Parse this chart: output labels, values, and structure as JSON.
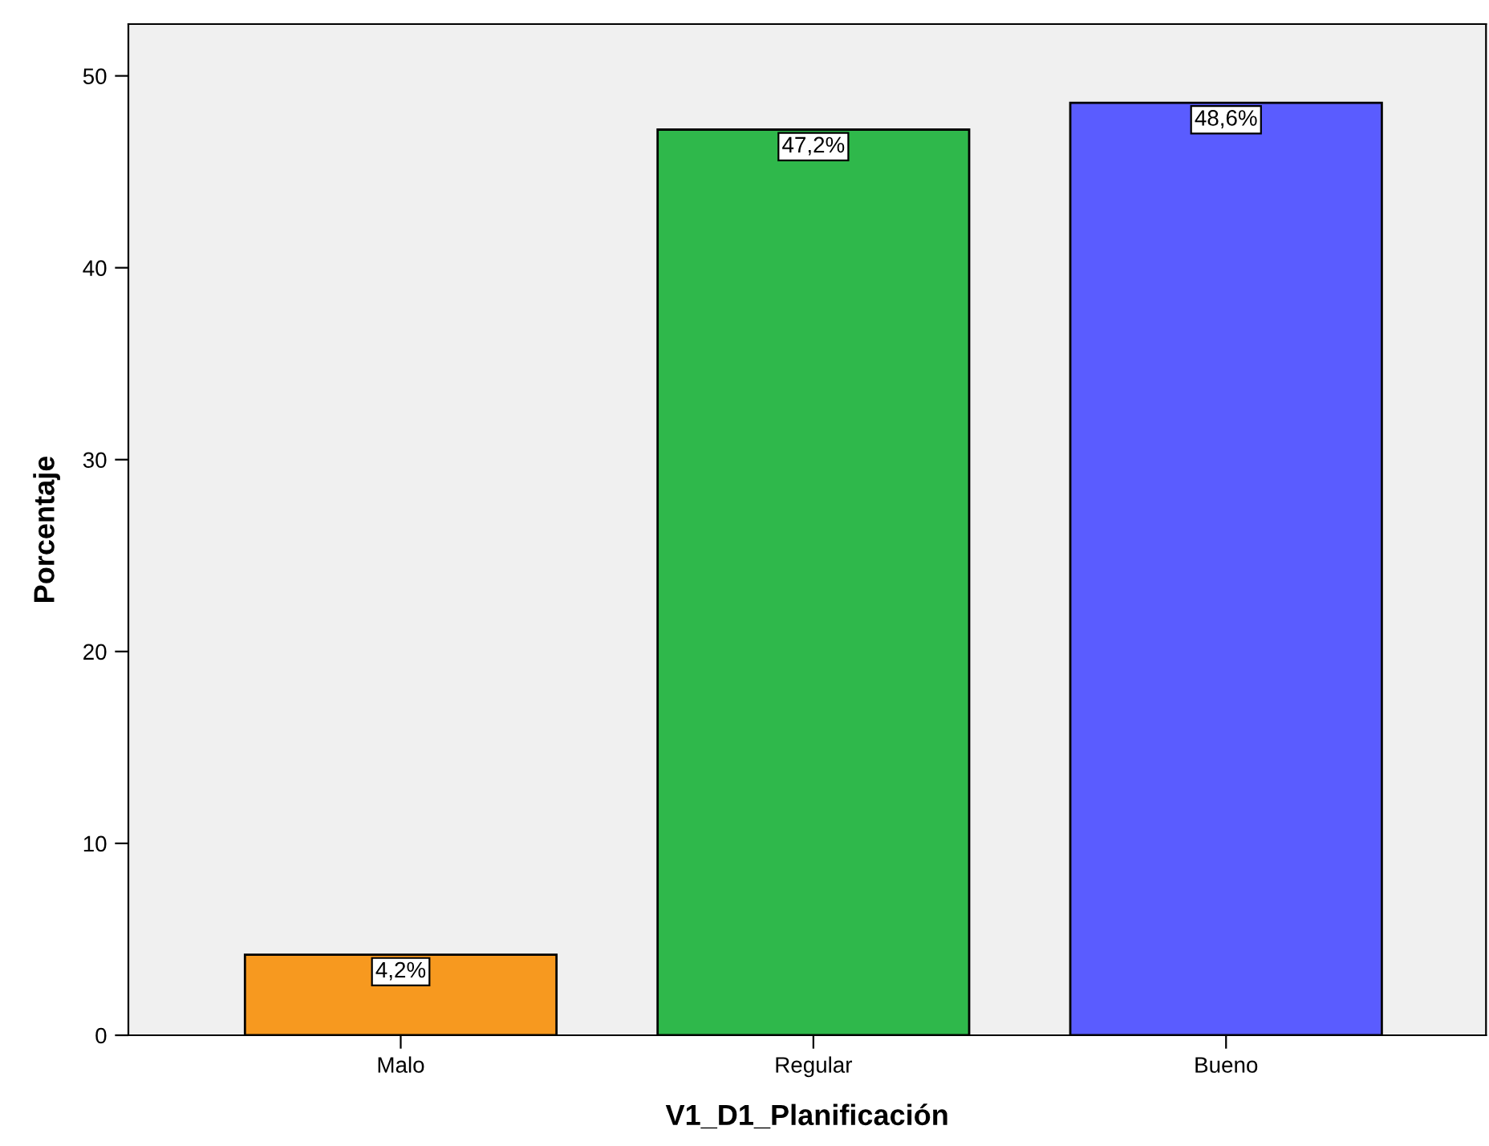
{
  "chart_data": {
    "type": "bar",
    "xlabel": "V1_D1_Planificación",
    "ylabel": "Porcentaje",
    "categories": [
      "Malo",
      "Regular",
      "Bueno"
    ],
    "values": [
      4.2,
      47.2,
      48.6
    ],
    "colors": [
      "#f7991f",
      "#2fb84b",
      "#5a5cff"
    ],
    "value_labels": [
      "4,2%",
      "47,2%",
      "48,6%"
    ],
    "ylim": [
      0,
      52.7
    ],
    "yticks": [
      0,
      10,
      20,
      30,
      40,
      50
    ],
    "grid": false
  }
}
